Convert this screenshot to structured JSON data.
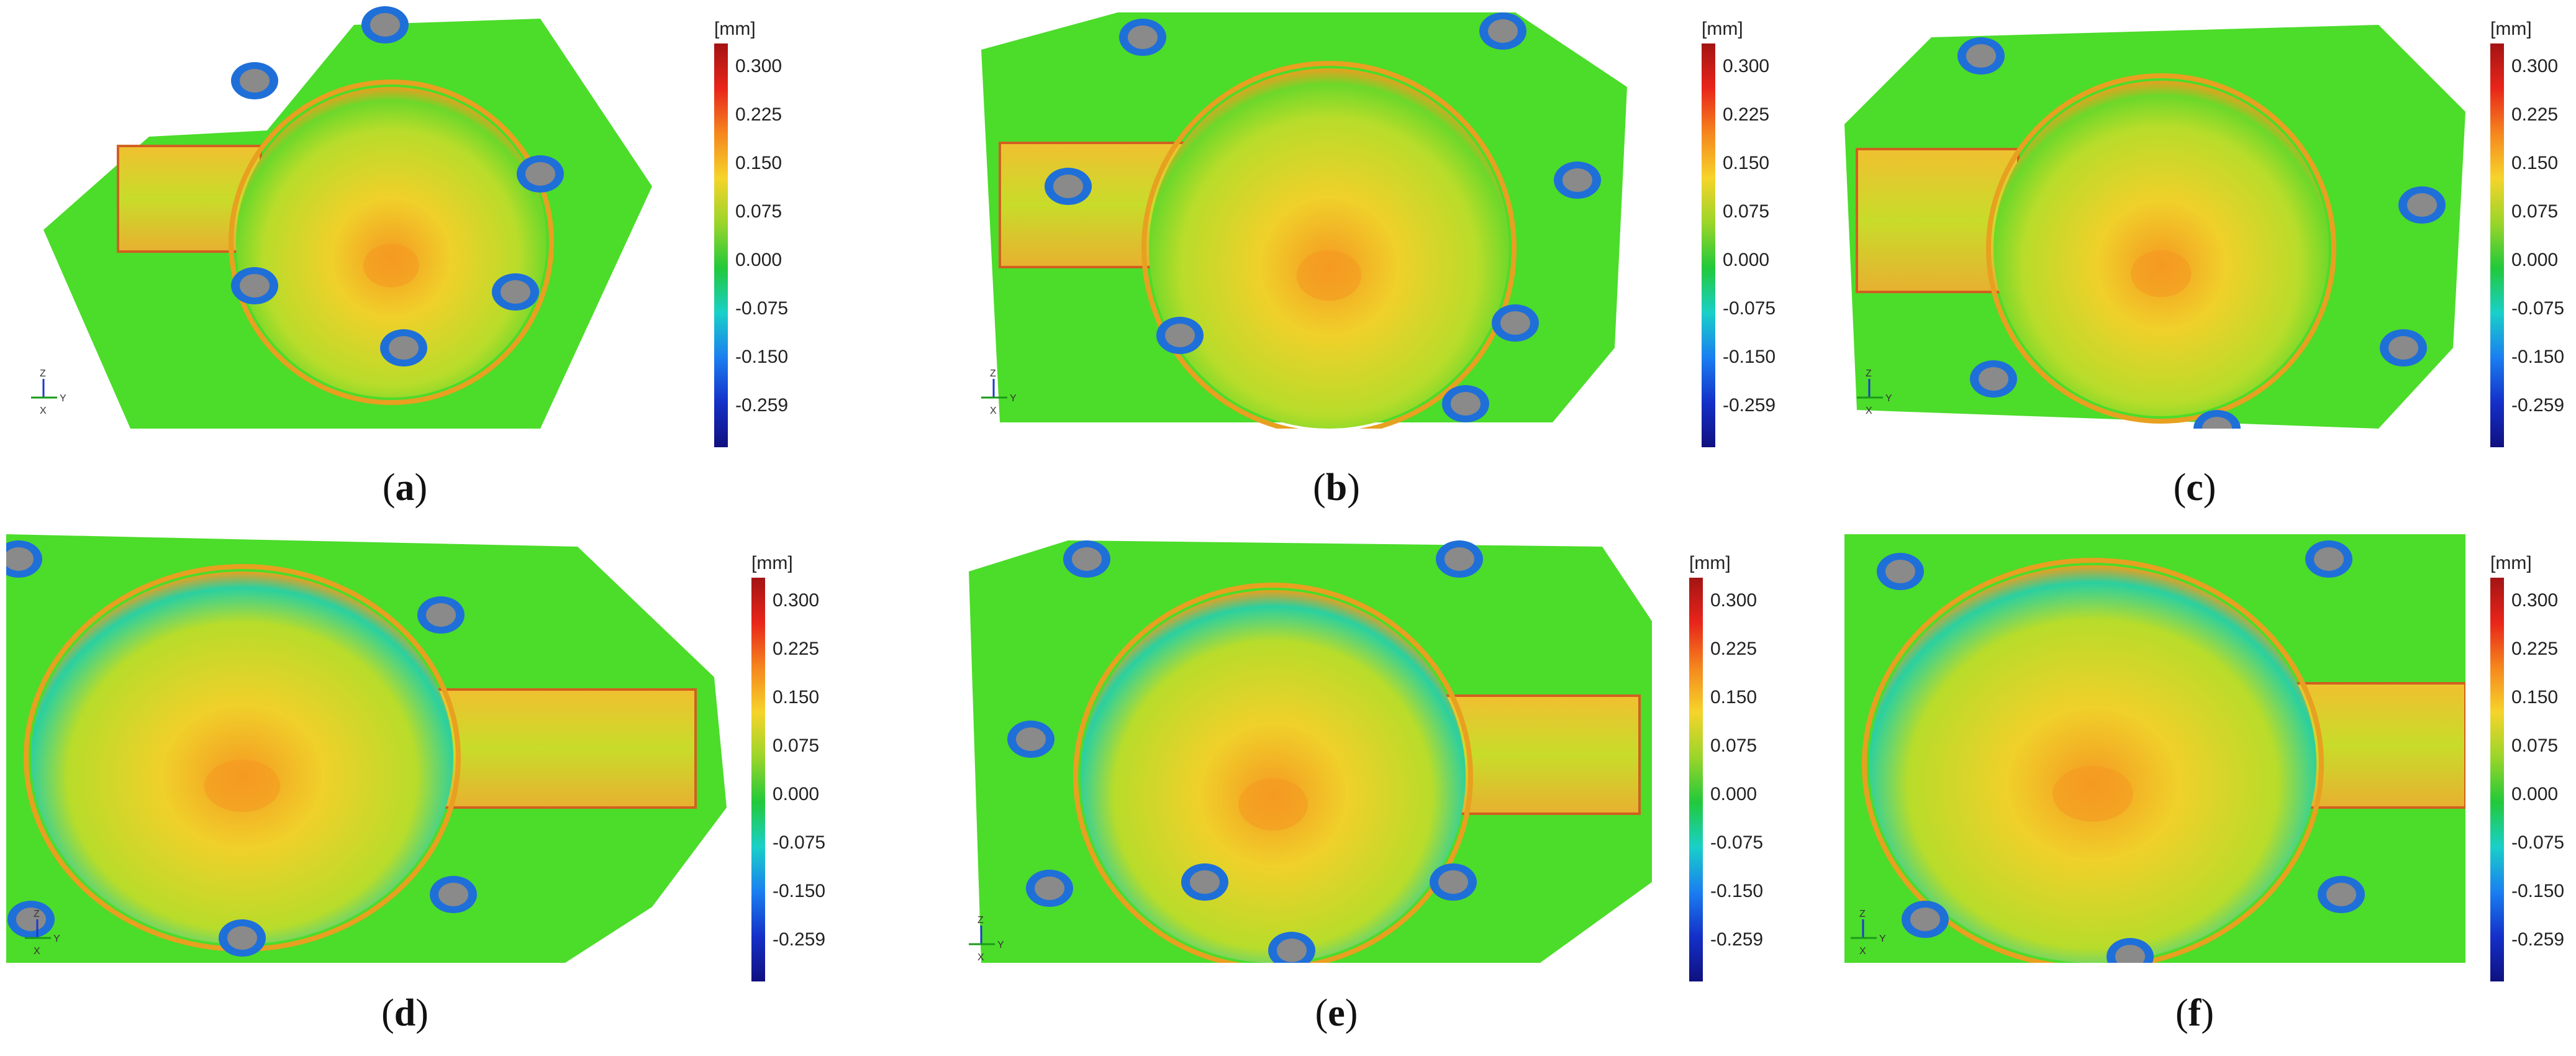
{
  "colorbar": {
    "unit": "[mm]",
    "ticks": [
      "0.300",
      "0.225",
      "0.150",
      "0.075",
      "0.000",
      "-0.075",
      "-0.150",
      "-0.259"
    ],
    "gradient_colors": [
      "#a31414",
      "#e8251a",
      "#f5861e",
      "#f6d42a",
      "#9bd52a",
      "#22c93a",
      "#19d0c8",
      "#1a7ff0",
      "#1430c8",
      "#101080"
    ]
  },
  "panels": [
    {
      "id": "a",
      "caption": "a",
      "layout": "left-cylinder"
    },
    {
      "id": "b",
      "caption": "b",
      "layout": "left-cylinder"
    },
    {
      "id": "c",
      "caption": "c",
      "layout": "left-cylinder"
    },
    {
      "id": "d",
      "caption": "d",
      "layout": "right-cylinder"
    },
    {
      "id": "e",
      "caption": "e",
      "layout": "right-cylinder"
    },
    {
      "id": "f",
      "caption": "f",
      "layout": "right-cylinder"
    }
  ],
  "axis_triad": {
    "letters": [
      "Z",
      "Y",
      "X"
    ]
  },
  "colors": {
    "surface": "#4cdc2a",
    "bowl_center": "#f0d02a",
    "hotspot": "#f59a22",
    "rim": "#e8a020",
    "boss_blue": "#1f6fd8",
    "hole_gray": "#8a8a8a"
  }
}
